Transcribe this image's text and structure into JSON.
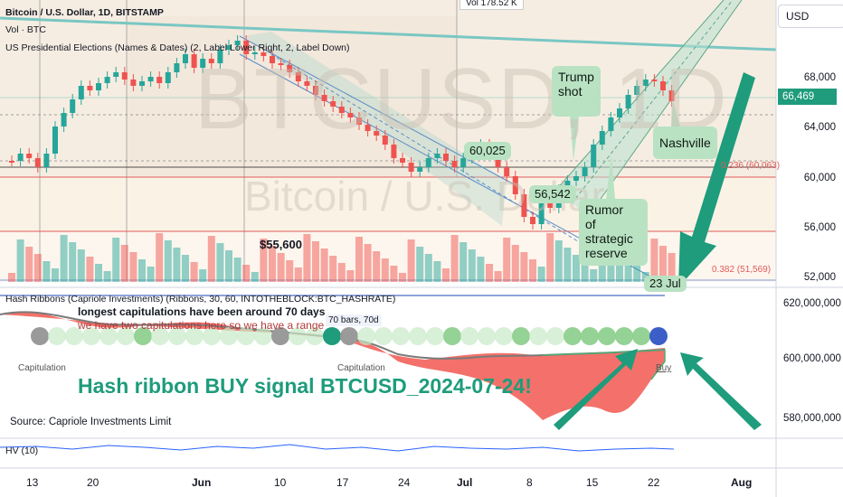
{
  "legend": {
    "symbol": "Bitcoin / U.S. Dollar, 1D, BITSTAMP",
    "vol": "Vol · BTC",
    "elections": "US Presidential Elections (Names & Dates) (2, Label Lower Right, 2, Label Down)",
    "hash_ribbons": "Hash Ribbons (Capriole Investments) (Ribbons, 30, 60, INTOTHEBLOCK:BTC_HASHRATE)",
    "hv": "HV (10)"
  },
  "watermark": {
    "big": "BTCUSD, 1D",
    "small": "Bitcoin / U.S. Dollar"
  },
  "currency_button": "USD",
  "vol_tooltip": "Vol 178.52 K",
  "current_price": "66,469",
  "price_axis": [
    "68,000",
    "64,000",
    "60,000",
    "56,000",
    "52,000"
  ],
  "hash_axis": [
    "620,000,000",
    "600,000,000",
    "580,000,000"
  ],
  "date_axis": [
    "13",
    "20",
    "Jun",
    "10",
    "17",
    "24",
    "Jul",
    "8",
    "15",
    "22",
    "Aug"
  ],
  "fib": {
    "f236": "0.236 (60,063)",
    "f382": "0.382 (51,569)"
  },
  "annotations": {
    "price_60025": "60,025",
    "price_56542": "56,542",
    "price_55600": "$55,600",
    "trump": [
      "Trump",
      "shot"
    ],
    "nashville": "Nashville",
    "rumor": [
      "Rumor",
      "of strategic",
      "reserve"
    ],
    "date_23jul": "23 Jul",
    "bars_range": "70 bars, 70d",
    "capitulations_1": "longest capitulations have been around 70 days",
    "capitulations_2": "we have two capitulations here so we have a range",
    "capitulation_left": "Capitulation",
    "capitulation_mid": "Capitulation",
    "buy": "Buy",
    "hash_signal": "Hash  ribbon BUY signal BTCUSD_2024-07-24!",
    "source": "Source: Capriole Investments Limit"
  },
  "colors": {
    "up": "#26a69a",
    "down": "#ef5350",
    "teal_arrow": "#1e9c7c",
    "channel": "#2f7d6a",
    "ribbon_fill": "#f3716a"
  }
}
